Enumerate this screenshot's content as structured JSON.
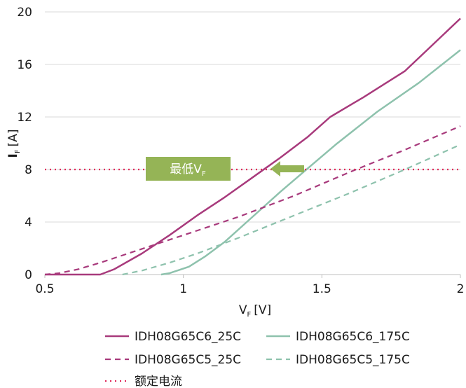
{
  "chart_data": {
    "type": "line",
    "xlabel": "V",
    "xlabel_sub": "F",
    "xlabel_unit": "[V]",
    "ylabel": "I",
    "ylabel_sub": "F",
    "ylabel_unit": "[A]",
    "xlim": [
      0.5,
      2
    ],
    "ylim": [
      0,
      20
    ],
    "xticks": [
      0.5,
      1,
      1.5,
      2
    ],
    "xtick_labels": [
      "0.5",
      "1",
      "1.5",
      "2"
    ],
    "yticks": [
      0,
      4,
      8,
      12,
      16,
      20
    ],
    "ytick_labels": [
      "0",
      "4",
      "8",
      "12",
      "16",
      "20"
    ],
    "grid": "horizontal",
    "legend_placement": "bottom",
    "series": [
      {
        "name": "IDH08G65C6_25C",
        "color": "#a83a7c",
        "dash": "solid",
        "points": [
          [
            0.5,
            0
          ],
          [
            0.7,
            0
          ],
          [
            0.75,
            0.4
          ],
          [
            0.85,
            1.6
          ],
          [
            0.95,
            3.0
          ],
          [
            1.05,
            4.5
          ],
          [
            1.15,
            5.9
          ],
          [
            1.25,
            7.4
          ],
          [
            1.35,
            8.9
          ],
          [
            1.45,
            10.5
          ],
          [
            1.53,
            12.0
          ],
          [
            1.65,
            13.5
          ],
          [
            1.8,
            15.5
          ],
          [
            2.0,
            19.5
          ]
        ]
      },
      {
        "name": "IDH08G65C6_175C",
        "color": "#8ec2ad",
        "dash": "solid",
        "points": [
          [
            0.92,
            0
          ],
          [
            0.95,
            0.1
          ],
          [
            1.02,
            0.6
          ],
          [
            1.08,
            1.4
          ],
          [
            1.15,
            2.5
          ],
          [
            1.25,
            4.4
          ],
          [
            1.35,
            6.3
          ],
          [
            1.45,
            8.1
          ],
          [
            1.55,
            9.9
          ],
          [
            1.7,
            12.4
          ],
          [
            1.85,
            14.6
          ],
          [
            2.0,
            17.1
          ]
        ]
      },
      {
        "name": "IDH08G65C5_25C",
        "color": "#a83a7c",
        "dash": "dashed",
        "points": [
          [
            0.5,
            0
          ],
          [
            0.55,
            0.1
          ],
          [
            0.62,
            0.4
          ],
          [
            0.7,
            0.9
          ],
          [
            0.8,
            1.6
          ],
          [
            0.9,
            2.3
          ],
          [
            1.0,
            3.0
          ],
          [
            1.2,
            4.4
          ],
          [
            1.4,
            6.0
          ],
          [
            1.6,
            7.8
          ],
          [
            1.8,
            9.5
          ],
          [
            2.0,
            11.3
          ]
        ]
      },
      {
        "name": "IDH08G65C5_175C",
        "color": "#8ec2ad",
        "dash": "dashed",
        "points": [
          [
            0.78,
            0
          ],
          [
            0.85,
            0.3
          ],
          [
            0.95,
            0.9
          ],
          [
            1.05,
            1.6
          ],
          [
            1.2,
            2.8
          ],
          [
            1.4,
            4.5
          ],
          [
            1.6,
            6.2
          ],
          [
            1.8,
            8.0
          ],
          [
            2.0,
            9.9
          ]
        ]
      },
      {
        "name": "额定电流",
        "color": "#e0295a",
        "dash": "dotted",
        "points": [
          [
            0.5,
            8
          ],
          [
            2.0,
            8
          ]
        ]
      }
    ],
    "annotation": {
      "label": "最低V",
      "label_sub": "F",
      "box_color": "#95b456",
      "arrow_color": "#95b456"
    }
  }
}
